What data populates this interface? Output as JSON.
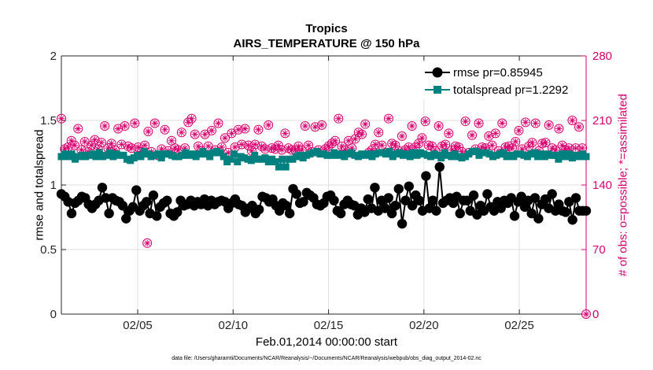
{
  "title": "Tropics",
  "subtitle": "AIRS_TEMPERATURE @ 150 hPa",
  "footnote": "data file: /Users/gharamti/Documents/NCAR/Reanalysis/~/Documents/NCAR/Reanalysis/webpub/obs_diag_output_2014-02.nc",
  "colors": {
    "rmse": "#000000",
    "spread": "#00807e",
    "obs": "#d6006f",
    "grid": "#e0e0e0"
  },
  "chart_data": {
    "type": "line",
    "title": "Tropics",
    "subtitle": "AIRS_TEMPERATURE @ 150 hPa",
    "xlabel": "Feb.01,2014 00:00:00 start",
    "ylabel": "rmse and totalspread",
    "ylabel_right": "# of obs: o=possible; *=assimilated",
    "xlim": [
      1,
      28.5
    ],
    "ylim": [
      0,
      2
    ],
    "ylim_right": [
      0,
      280
    ],
    "xticks": [
      5,
      10,
      15,
      20,
      25
    ],
    "xtick_labels": [
      "02/05",
      "02/10",
      "02/15",
      "02/20",
      "02/25"
    ],
    "yticks": [
      0,
      0.5,
      1,
      1.5,
      2
    ],
    "ytick_labels": [
      "0",
      "0.5",
      "1",
      "1.5",
      "2"
    ],
    "yticks_right": [
      0,
      70,
      140,
      210,
      280
    ],
    "ytick_labels_right": [
      "0",
      "70",
      "140",
      "210",
      "280"
    ],
    "legend_position": "top-right",
    "x_start": 1.0,
    "x_step": 0.25,
    "series": [
      {
        "name": "rmse pr=0.85945",
        "axis": "left",
        "marker": "circle",
        "values": [
          0.93,
          0.91,
          0.87,
          0.78,
          0.86,
          0.88,
          0.91,
          0.9,
          0.85,
          0.82,
          0.85,
          0.88,
          0.98,
          0.9,
          0.78,
          0.9,
          0.88,
          0.87,
          0.84,
          0.74,
          0.8,
          0.83,
          0.96,
          0.8,
          0.84,
          0.87,
          0.78,
          0.92,
          0.76,
          0.83,
          0.86,
          0.88,
          0.78,
          0.76,
          0.79,
          0.88,
          0.84,
          0.85,
          0.88,
          0.84,
          0.87,
          0.85,
          0.89,
          0.84,
          0.88,
          0.85,
          0.87,
          0.88,
          0.87,
          0.82,
          0.86,
          0.89,
          0.85,
          0.84,
          0.79,
          0.82,
          0.84,
          0.78,
          0.81,
          0.91,
          0.9,
          0.87,
          0.89,
          0.84,
          0.8,
          0.86,
          0.84,
          0.78,
          0.97,
          0.93,
          0.86,
          0.87,
          0.94,
          0.92,
          0.9,
          0.85,
          0.84,
          0.86,
          0.91,
          0.92,
          0.88,
          0.8,
          0.78,
          0.85,
          0.88,
          0.85,
          0.84,
          0.77,
          0.82,
          0.79,
          0.89,
          0.82,
          0.98,
          0.8,
          0.88,
          0.82,
          0.9,
          0.78,
          0.84,
          0.97,
          0.7,
          0.88,
          0.99,
          0.84,
          0.92,
          0.88,
          0.8,
          1.07,
          0.82,
          0.88,
          0.8,
          1.14,
          0.86,
          0.88,
          0.9,
          0.86,
          0.91,
          0.78,
          0.88,
          0.88,
          0.8,
          0.92,
          0.77,
          0.84,
          0.8,
          0.93,
          0.83,
          0.8,
          0.87,
          0.82,
          0.88,
          0.86,
          0.9,
          0.76,
          0.87,
          0.91,
          0.83,
          0.88,
          0.78,
          0.9,
          0.74,
          0.85,
          0.89,
          0.82,
          0.93,
          0.8,
          0.85,
          0.8,
          0.79,
          0.87,
          0.73,
          0.9,
          0.8,
          0.8,
          0.8
        ]
      },
      {
        "name": "totalspread pr=1.2292",
        "axis": "left",
        "marker": "square",
        "values": [
          1.22,
          1.24,
          1.22,
          1.24,
          1.2,
          1.22,
          1.23,
          1.22,
          1.23,
          1.24,
          1.22,
          1.25,
          1.22,
          1.23,
          1.25,
          1.22,
          1.24,
          1.23,
          1.23,
          1.2,
          1.19,
          1.21,
          1.23,
          1.22,
          1.26,
          1.24,
          1.22,
          1.23,
          1.24,
          1.21,
          1.24,
          1.24,
          1.23,
          1.22,
          1.22,
          1.23,
          1.25,
          1.23,
          1.24,
          1.22,
          1.24,
          1.26,
          1.24,
          1.22,
          1.25,
          1.26,
          1.25,
          1.22,
          1.18,
          1.2,
          1.24,
          1.18,
          1.22,
          1.21,
          1.2,
          1.19,
          1.23,
          1.2,
          1.2,
          1.21,
          1.18,
          1.2,
          1.18,
          1.14,
          1.2,
          1.14,
          1.2,
          1.2,
          1.22,
          1.23,
          1.21,
          1.23,
          1.24,
          1.25,
          1.26,
          1.24,
          1.24,
          1.23,
          1.23,
          1.25,
          1.23,
          1.24,
          1.22,
          1.24,
          1.25,
          1.23,
          1.22,
          1.24,
          1.23,
          1.24,
          1.22,
          1.24,
          1.25,
          1.25,
          1.24,
          1.26,
          1.22,
          1.24,
          1.25,
          1.23,
          1.24,
          1.22,
          1.25,
          1.23,
          1.25,
          1.24,
          1.23,
          1.22,
          1.24,
          1.23,
          1.21,
          1.25,
          1.23,
          1.22,
          1.24,
          1.22,
          1.21,
          1.22,
          1.24,
          1.26,
          1.26,
          1.23,
          1.25,
          1.25,
          1.24,
          1.22,
          1.23,
          1.24,
          1.25,
          1.22,
          1.23,
          1.22,
          1.24,
          1.24,
          1.23,
          1.22,
          1.24,
          1.25,
          1.22,
          1.24,
          1.22,
          1.24,
          1.23,
          1.23,
          1.2,
          1.24,
          1.22,
          1.24,
          1.21,
          1.23,
          1.22,
          1.24,
          1.22
        ]
      },
      {
        "name": "# of obs possible/assimilated",
        "axis": "right",
        "marker": "circle-star",
        "values": [
          212,
          179,
          181,
          188,
          183,
          201,
          178,
          187,
          176,
          183,
          189,
          179,
          186,
          204,
          180,
          185,
          178,
          201,
          184,
          204,
          182,
          180,
          207,
          181,
          176,
          183,
          198,
          176,
          207,
          172,
          179,
          200,
          177,
          188,
          180,
          178,
          197,
          180,
          208,
          212,
          195,
          182,
          177,
          195,
          182,
          199,
          178,
          207,
          181,
          191,
          175,
          196,
          181,
          200,
          184,
          201,
          183,
          177,
          184,
          200,
          182,
          179,
          205,
          180,
          179,
          183,
          178,
          196,
          180,
          178,
          178,
          182,
          178,
          204,
          183,
          176,
          203,
          178,
          205,
          179,
          182,
          185,
          188,
          212,
          182,
          178,
          188,
          180,
          190,
          197,
          195,
          206,
          175,
          178,
          184,
          197,
          183,
          175,
          212,
          185,
          183,
          177,
          193,
          178,
          181,
          204,
          181,
          185,
          191,
          209,
          183,
          182,
          177,
          204,
          182,
          184,
          196,
          178,
          182,
          181,
          176,
          209,
          175,
          194,
          179,
          207,
          181,
          180,
          193,
          183,
          196,
          177,
          207,
          181,
          182,
          180,
          187,
          199,
          179,
          208,
          182,
          186,
          207,
          177,
          185,
          186,
          205,
          180,
          178,
          201,
          183,
          178,
          180,
          210,
          180,
          203,
          180
        ]
      }
    ],
    "outliers": [
      {
        "x": 5.5,
        "y_right": 77
      }
    ],
    "end_marker": {
      "x": 28.5,
      "y_right": 0
    }
  }
}
